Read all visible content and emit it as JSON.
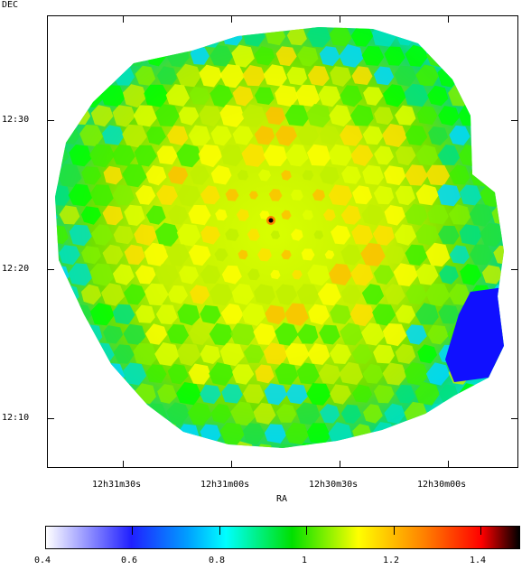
{
  "axes": {
    "dec_label": "DEC",
    "ra_label": "RA",
    "dec_ticks": [
      "12:30",
      "12:20",
      "12:10"
    ],
    "ra_ticks": [
      "12h31m30s",
      "12h31m00s",
      "12h30m30s",
      "12h30m00s"
    ]
  },
  "colorbar": {
    "ticks": [
      "0.4",
      "0.6",
      "0.8",
      "1",
      "1.2",
      "1.4"
    ],
    "stops": [
      {
        "pos": 0.0,
        "color": "#ffffff"
      },
      {
        "pos": 0.18,
        "color": "#2020ff"
      },
      {
        "pos": 0.3,
        "color": "#00a0ff"
      },
      {
        "pos": 0.38,
        "color": "#00ffff"
      },
      {
        "pos": 0.52,
        "color": "#00e000"
      },
      {
        "pos": 0.66,
        "color": "#ffff00"
      },
      {
        "pos": 0.8,
        "color": "#ff8000"
      },
      {
        "pos": 0.92,
        "color": "#ff0000"
      },
      {
        "pos": 1.0,
        "color": "#000000"
      }
    ]
  }
}
